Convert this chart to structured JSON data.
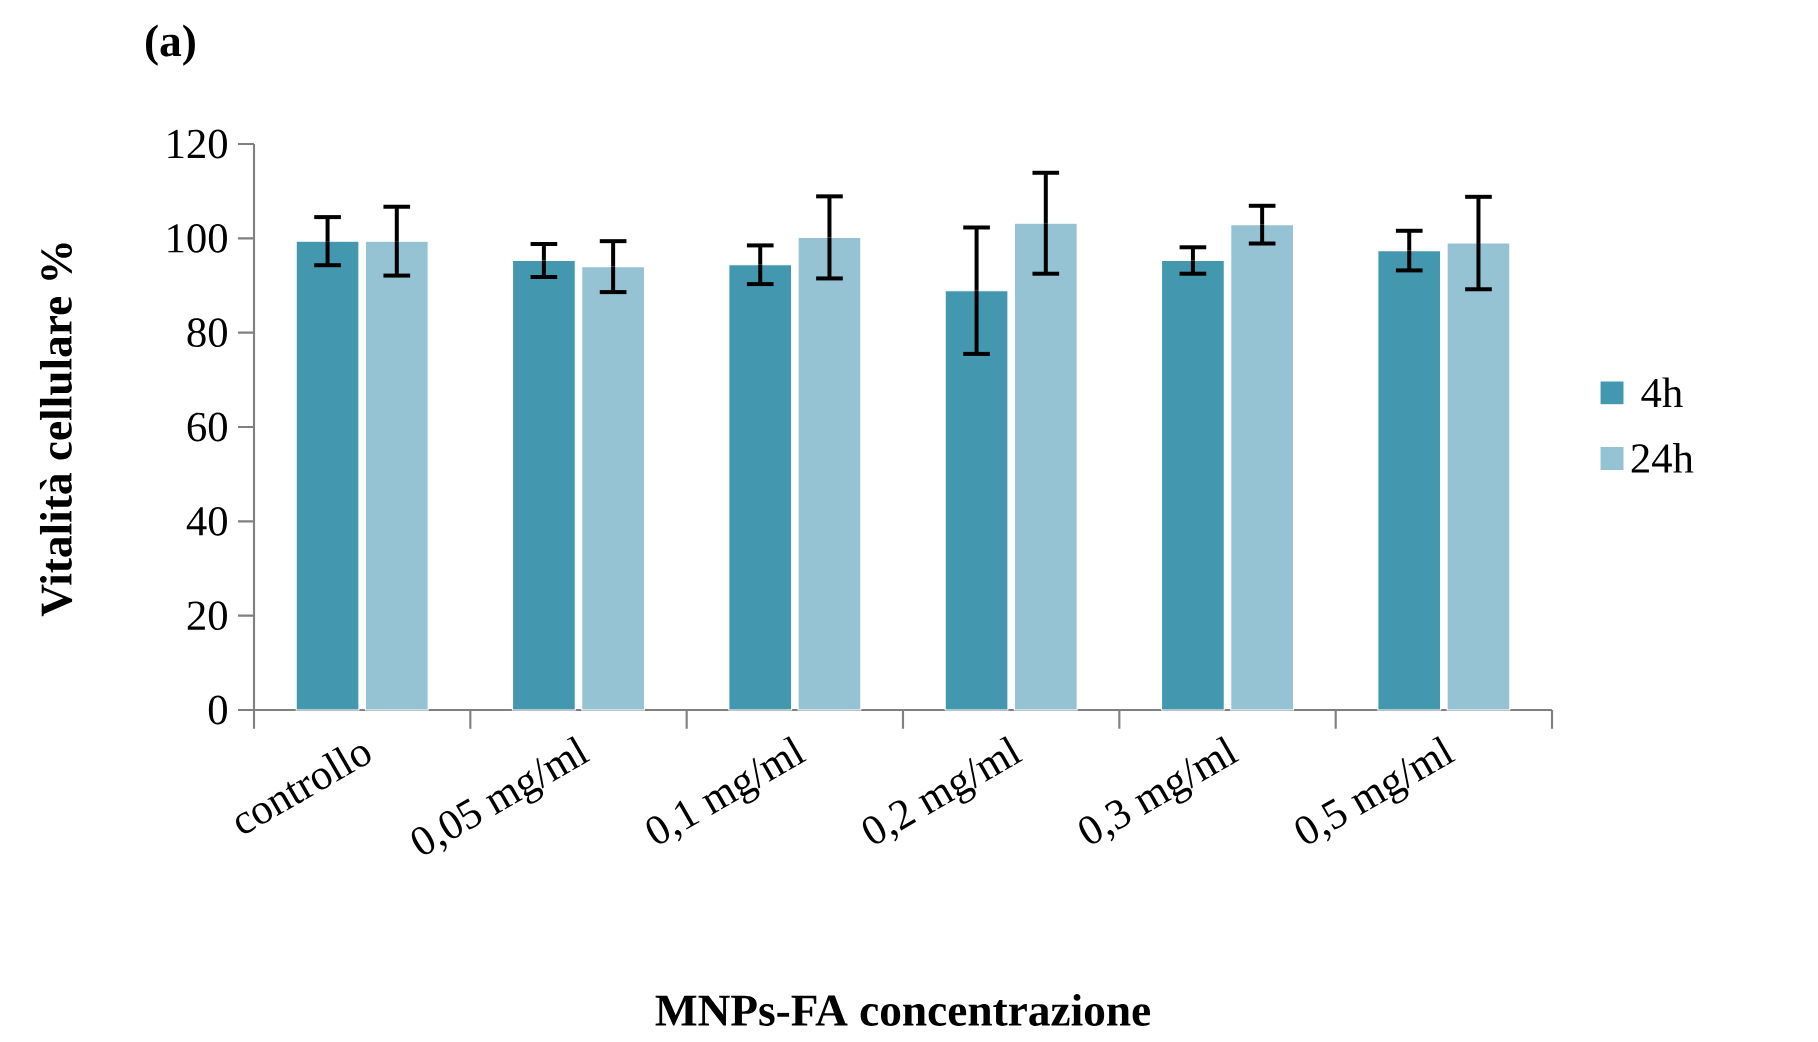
{
  "chart_data": {
    "type": "bar",
    "title": "(a)",
    "xlabel": "MNPs-FA concentrazione",
    "ylabel": "Vitalità cellulare %",
    "categories": [
      "controllo",
      "0,05 mg/ml",
      "0,1 mg/ml",
      "0,2 mg/ml",
      "0,3 mg/ml",
      "0,5 mg/ml"
    ],
    "series": [
      {
        "name": "4h",
        "color": "#4398b0",
        "values": [
          99.4,
          95.3,
          94.4,
          88.9,
          95.3,
          97.4
        ],
        "errors": [
          5.1,
          3.5,
          4.1,
          13.4,
          2.8,
          4.2
        ]
      },
      {
        "name": "24h",
        "color": "#95c3d4",
        "values": [
          99.4,
          94.0,
          100.2,
          103.2,
          102.9,
          99.0
        ],
        "errors": [
          7.3,
          5.4,
          8.7,
          10.7,
          4.0,
          9.8
        ]
      }
    ],
    "ylim": [
      0,
      120
    ],
    "yticks": [
      0,
      20,
      40,
      60,
      80,
      100,
      120
    ],
    "grid": false,
    "legend": "right"
  }
}
